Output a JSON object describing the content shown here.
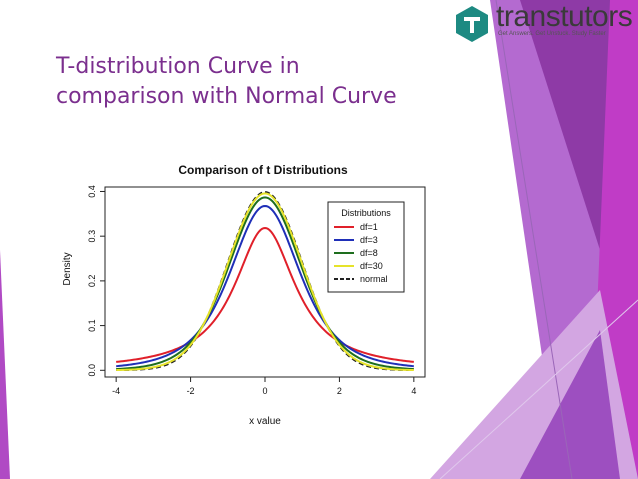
{
  "slide": {
    "title_line1": "T-distribution Curve in",
    "title_line2": "comparison with Normal Curve"
  },
  "logo": {
    "wordmark": "transtutors",
    "tagline": "Get Answers. Get Unstuck. Study Faster",
    "brand_color": "#1d8a82"
  },
  "theme": {
    "title_color": "#7b2f8e",
    "accent_purple": "#8e3aa6",
    "accent_magenta": "#c03cc6"
  },
  "chart_data": {
    "type": "line",
    "title": "Comparison of t Distributions",
    "xlabel": "x value",
    "ylabel": "Density",
    "xlim": [
      -4,
      4
    ],
    "ylim": [
      0,
      0.4
    ],
    "x_ticks": [
      -4,
      -2,
      0,
      2,
      4
    ],
    "y_ticks": [
      0.0,
      0.1,
      0.2,
      0.3,
      0.4
    ],
    "y_tick_labels": [
      "0.0",
      "0.1",
      "0.2",
      "0.3",
      "0.4"
    ],
    "grid": false,
    "legend_title": "Distributions",
    "legend_position": "top-right",
    "series": [
      {
        "name": "df=1",
        "color": "#e0202a",
        "dash": "solid",
        "df": 1
      },
      {
        "name": "df=3",
        "color": "#1f2fb8",
        "dash": "solid",
        "df": 3
      },
      {
        "name": "df=8",
        "color": "#1e6e1e",
        "dash": "solid",
        "df": 8
      },
      {
        "name": "df=30",
        "color": "#e6e32a",
        "dash": "solid",
        "df": 30
      },
      {
        "name": "normal",
        "color": "#222222",
        "dash": "dashed",
        "df": null
      }
    ]
  }
}
